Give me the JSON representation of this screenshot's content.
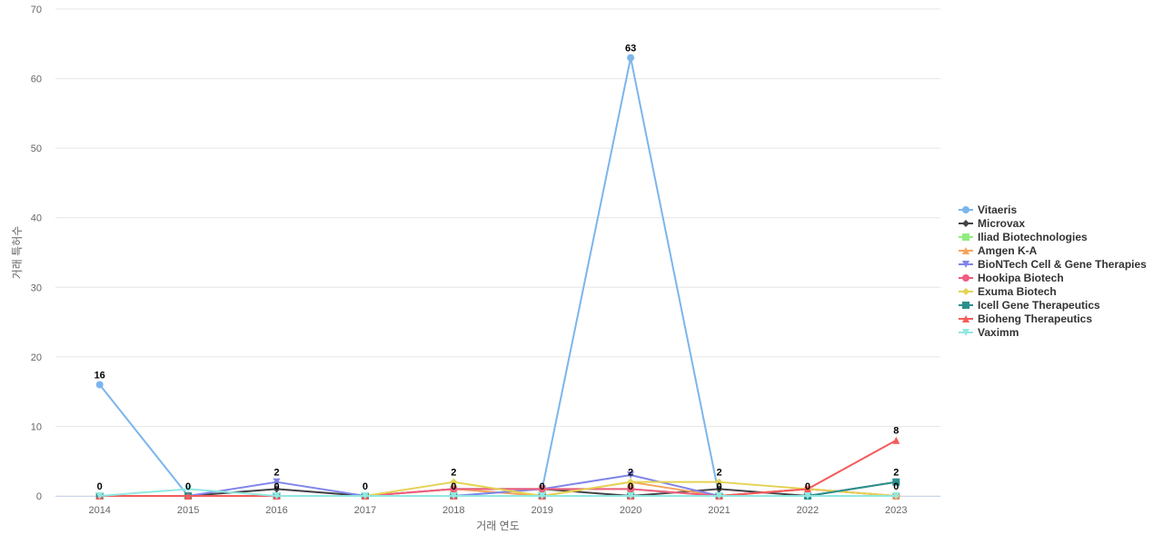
{
  "chart_data": {
    "type": "line",
    "title": "",
    "xlabel": "거래 연도",
    "ylabel": "거래 특허수",
    "ylim": [
      0,
      70
    ],
    "yticks": [
      0,
      10,
      20,
      30,
      40,
      50,
      60,
      70
    ],
    "categories": [
      "2014",
      "2015",
      "2016",
      "2017",
      "2018",
      "2019",
      "2020",
      "2021",
      "2022",
      "2023"
    ],
    "grid": true,
    "legend_position": "right",
    "series": [
      {
        "name": "Vitaeris",
        "color": "#7cb5ec",
        "marker": "circle",
        "values": [
          16,
          0,
          0,
          0,
          0,
          1,
          63,
          0,
          0,
          0
        ]
      },
      {
        "name": "Microvax",
        "color": "#434348",
        "marker": "diamond",
        "values": [
          0,
          0,
          1,
          0,
          1,
          1,
          0,
          1,
          0,
          2
        ]
      },
      {
        "name": "Iliad Biotechnologies",
        "color": "#90ed7d",
        "marker": "square",
        "values": [
          0,
          0,
          0,
          0,
          1,
          1,
          1,
          0,
          0,
          0
        ]
      },
      {
        "name": "Amgen K-A",
        "color": "#f7a35c",
        "marker": "triangle",
        "values": [
          0,
          0,
          0,
          0,
          1,
          0,
          2,
          0,
          1,
          0
        ]
      },
      {
        "name": "BioNTech Cell & Gene Therapies",
        "color": "#8085e9",
        "marker": "triangle-down",
        "values": [
          0,
          0,
          2,
          0,
          0,
          1,
          3,
          0,
          0,
          0
        ]
      },
      {
        "name": "Hookipa Biotech",
        "color": "#f15c80",
        "marker": "circle",
        "values": [
          0,
          0,
          0,
          0,
          1,
          1,
          1,
          0,
          1,
          0
        ]
      },
      {
        "name": "Exuma Biotech",
        "color": "#e4d354",
        "marker": "diamond",
        "values": [
          0,
          0,
          0,
          0,
          2,
          0,
          2,
          2,
          1,
          0
        ]
      },
      {
        "name": "Icell Gene Therapeutics",
        "color": "#2b908f",
        "marker": "square",
        "values": [
          0,
          0,
          0,
          0,
          0,
          0,
          0,
          0,
          0,
          2
        ]
      },
      {
        "name": "Bioheng Therapeutics",
        "color": "#f45b5b",
        "marker": "triangle",
        "values": [
          0,
          0,
          0,
          0,
          0,
          0,
          0,
          0,
          1,
          8
        ]
      },
      {
        "name": "Vaximm",
        "color": "#91e8e1",
        "marker": "triangle-down",
        "values": [
          0,
          1,
          0,
          0,
          0,
          0,
          0,
          0,
          0,
          0
        ]
      }
    ],
    "data_labels": [
      {
        "category": "2014",
        "value": 16,
        "text": "16"
      },
      {
        "category": "2014",
        "value": 0,
        "text": "0"
      },
      {
        "category": "2015",
        "value": 0,
        "text": "0"
      },
      {
        "category": "2016",
        "value": 2,
        "text": "2"
      },
      {
        "category": "2016",
        "value": 0,
        "text": "0"
      },
      {
        "category": "2017",
        "value": 0,
        "text": "0"
      },
      {
        "category": "2018",
        "value": 2,
        "text": "2"
      },
      {
        "category": "2018",
        "value": 0,
        "text": "0"
      },
      {
        "category": "2019",
        "value": 0,
        "text": "0"
      },
      {
        "category": "2020",
        "value": 63,
        "text": "63"
      },
      {
        "category": "2020",
        "value": 2,
        "text": "2"
      },
      {
        "category": "2020",
        "value": 0,
        "text": "0"
      },
      {
        "category": "2021",
        "value": 2,
        "text": "2"
      },
      {
        "category": "2021",
        "value": 0,
        "text": "0"
      },
      {
        "category": "2022",
        "value": 0,
        "text": "0"
      },
      {
        "category": "2023",
        "value": 8,
        "text": "8"
      },
      {
        "category": "2023",
        "value": 2,
        "text": "2"
      },
      {
        "category": "2023",
        "value": 0,
        "text": "0"
      }
    ]
  }
}
